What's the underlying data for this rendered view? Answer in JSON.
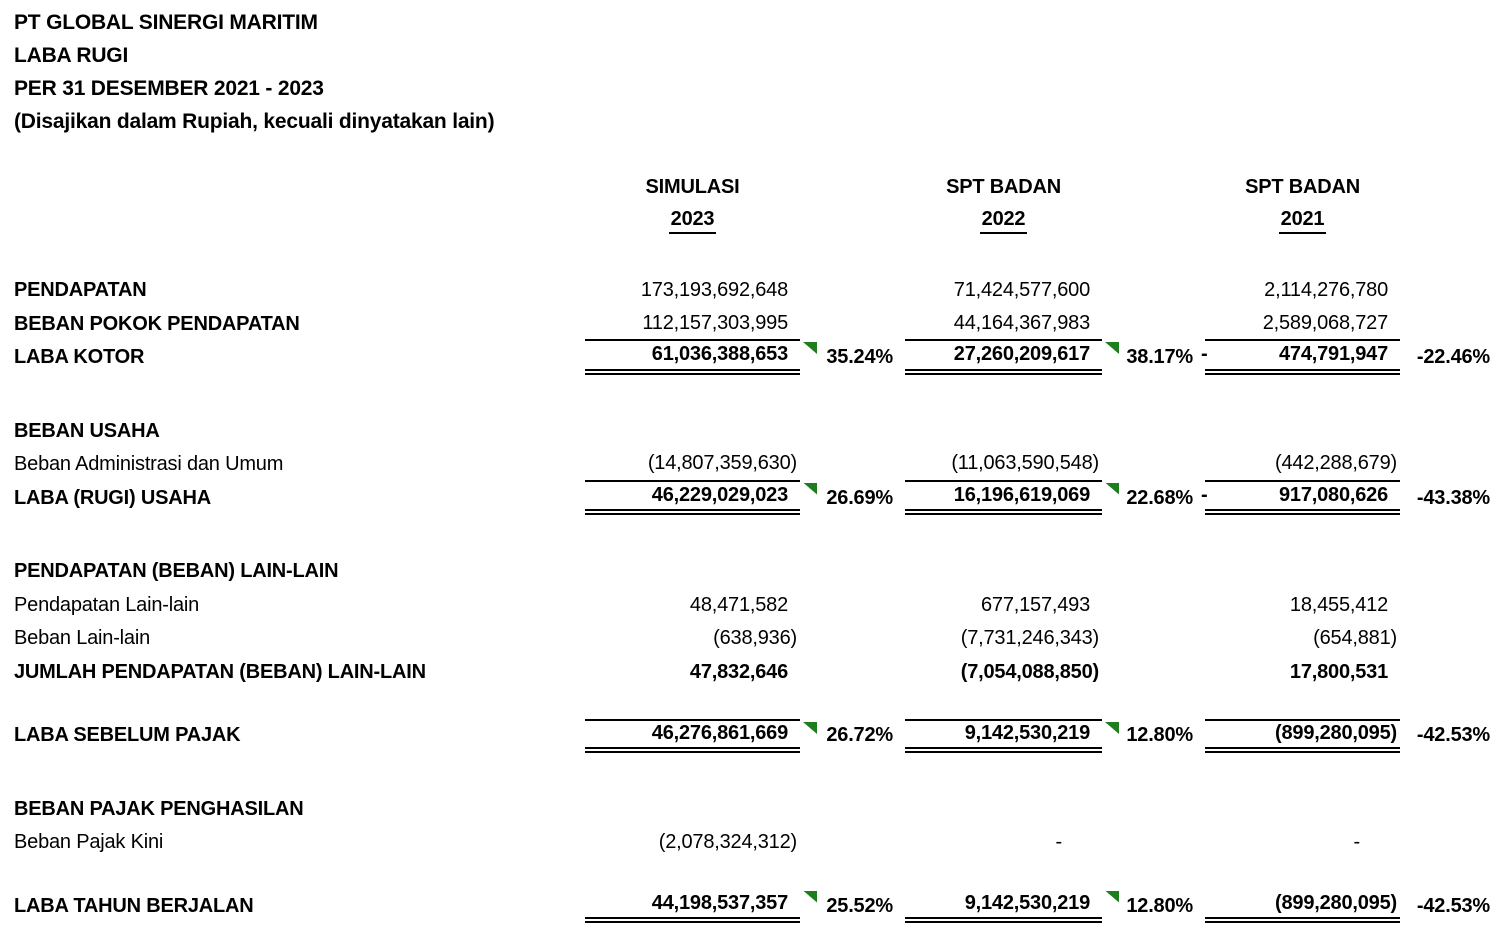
{
  "title_block": {
    "company": "PT GLOBAL SINERGI MARITIM",
    "report": "LABA RUGI",
    "period": "PER 31 DESEMBER 2021 - 2023",
    "note": "(Disajikan dalam Rupiah, kecuali dinyatakan lain)"
  },
  "columns": [
    {
      "source": "SIMULASI",
      "year": "2023"
    },
    {
      "source": "SPT BADAN",
      "year": "2022"
    },
    {
      "source": "SPT BADAN",
      "year": "2021"
    }
  ],
  "colors": {
    "flag_green": "#1e7e1e",
    "text": "#000000",
    "background": "#ffffff"
  },
  "rows": [
    {
      "label": "PENDAPATAN",
      "label_bold": true,
      "cols": [
        {
          "value": "173,193,692,648"
        },
        {
          "value": "71,424,577,600"
        },
        {
          "value": "2,114,276,780"
        }
      ]
    },
    {
      "label": "BEBAN POKOK PENDAPATAN",
      "label_bold": true,
      "border": "single",
      "cols": [
        {
          "value": "112,157,303,995"
        },
        {
          "value": "44,164,367,983"
        },
        {
          "value": "2,589,068,727"
        }
      ]
    },
    {
      "label": "LABA KOTOR",
      "label_bold": true,
      "value_bold": true,
      "border": "double",
      "cols": [
        {
          "value": "61,036,388,653",
          "pct": "35.24%",
          "flag": true
        },
        {
          "value": "27,260,209,617",
          "pct": "38.17%",
          "flag": true
        },
        {
          "value": "474,791,947",
          "pct": "-22.46%",
          "neg": "-"
        }
      ]
    },
    {
      "type": "spacer"
    },
    {
      "label": "BEBAN USAHA",
      "label_bold": true
    },
    {
      "label": "Beban Administrasi dan Umum",
      "border": "single",
      "cols": [
        {
          "value": "(14,807,359,630)"
        },
        {
          "value": "(11,063,590,548)"
        },
        {
          "value": "(442,288,679)"
        }
      ]
    },
    {
      "label": "LABA (RUGI) USAHA",
      "label_bold": true,
      "value_bold": true,
      "border": "double",
      "cols": [
        {
          "value": "46,229,029,023",
          "pct": "26.69%",
          "flag": true
        },
        {
          "value": "16,196,619,069",
          "pct": "22.68%",
          "flag": true
        },
        {
          "value": "917,080,626",
          "pct": "-43.38%",
          "neg": "-"
        }
      ]
    },
    {
      "type": "spacer"
    },
    {
      "label": "PENDAPATAN (BEBAN) LAIN-LAIN",
      "label_bold": true
    },
    {
      "label": "Pendapatan Lain-lain",
      "cols": [
        {
          "value": "48,471,582"
        },
        {
          "value": "677,157,493"
        },
        {
          "value": "18,455,412"
        }
      ]
    },
    {
      "label": "Beban Lain-lain",
      "cols": [
        {
          "value": "(638,936)"
        },
        {
          "value": "(7,731,246,343)"
        },
        {
          "value": "(654,881)"
        }
      ]
    },
    {
      "label": "JUMLAH PENDAPATAN (BEBAN) LAIN-LAIN",
      "label_bold": true,
      "value_bold": true,
      "cols": [
        {
          "value": "47,832,646"
        },
        {
          "value": "(7,054,088,850)"
        },
        {
          "value": "17,800,531"
        }
      ]
    },
    {
      "type": "spacer",
      "size": "sm"
    },
    {
      "label": "LABA SEBELUM PAJAK",
      "label_bold": true,
      "value_bold": true,
      "top_border": true,
      "border": "double",
      "cols": [
        {
          "value": "46,276,861,669",
          "pct": "26.72%",
          "flag": true
        },
        {
          "value": "9,142,530,219",
          "pct": "12.80%",
          "flag": true
        },
        {
          "value": "(899,280,095)",
          "pct": "-42.53%"
        }
      ]
    },
    {
      "type": "spacer"
    },
    {
      "label": "BEBAN PAJAK PENGHASILAN",
      "label_bold": true
    },
    {
      "label": "Beban Pajak Kini",
      "cols": [
        {
          "value": "(2,078,324,312)"
        },
        {
          "value": "-"
        },
        {
          "value": "-"
        }
      ]
    },
    {
      "type": "spacer",
      "size": "sm"
    },
    {
      "label": "LABA TAHUN BERJALAN",
      "label_bold": true,
      "value_bold": true,
      "border": "double",
      "cols": [
        {
          "value": "44,198,537,357",
          "pct": "25.52%",
          "flag": true
        },
        {
          "value": "9,142,530,219",
          "pct": "12.80%",
          "flag": true
        },
        {
          "value": "(899,280,095)",
          "pct": "-42.53%"
        }
      ]
    }
  ]
}
